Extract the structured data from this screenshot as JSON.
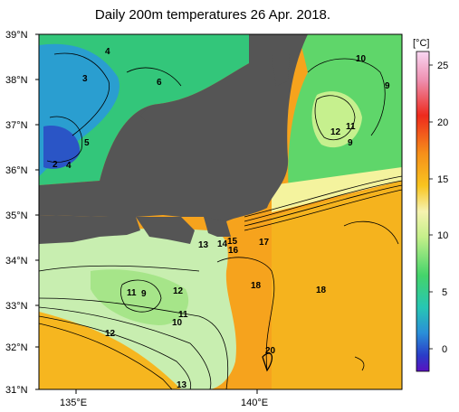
{
  "title": "Daily 200m temperatures 26 Apr. 2018.",
  "lat_labels": [
    "39°N",
    "38°N",
    "37°N",
    "36°N",
    "35°N",
    "34°N",
    "33°N",
    "32°N",
    "31°N"
  ],
  "lon_labels": [
    "135°E",
    "140°E"
  ],
  "colorbar": {
    "unit": "[°C]",
    "ticks": [
      "25",
      "20",
      "15",
      "10",
      "5",
      "0"
    ],
    "colors": [
      "#f6d0f0",
      "#f08aa0",
      "#ef2020",
      "#f45a10",
      "#f7981a",
      "#f9c81e",
      "#f7e87a",
      "#f4f7a8",
      "#c6f08c",
      "#7fe37a",
      "#3fd36c",
      "#27c7b0",
      "#2aa6d6",
      "#2a6fd0",
      "#2a38c8",
      "#5a12c0"
    ]
  },
  "contour_labels": [
    "4",
    "3",
    "6",
    "5",
    "2",
    "4",
    "10",
    "9",
    "11",
    "12",
    "9",
    "13",
    "14",
    "15",
    "16",
    "17",
    "18",
    "18",
    "11",
    "9",
    "12",
    "11",
    "10",
    "12",
    "20",
    "13"
  ],
  "colors": {
    "land": "#555555",
    "deep_warm": "#f6a11c",
    "cool_shelf": "#bfe9a6"
  }
}
